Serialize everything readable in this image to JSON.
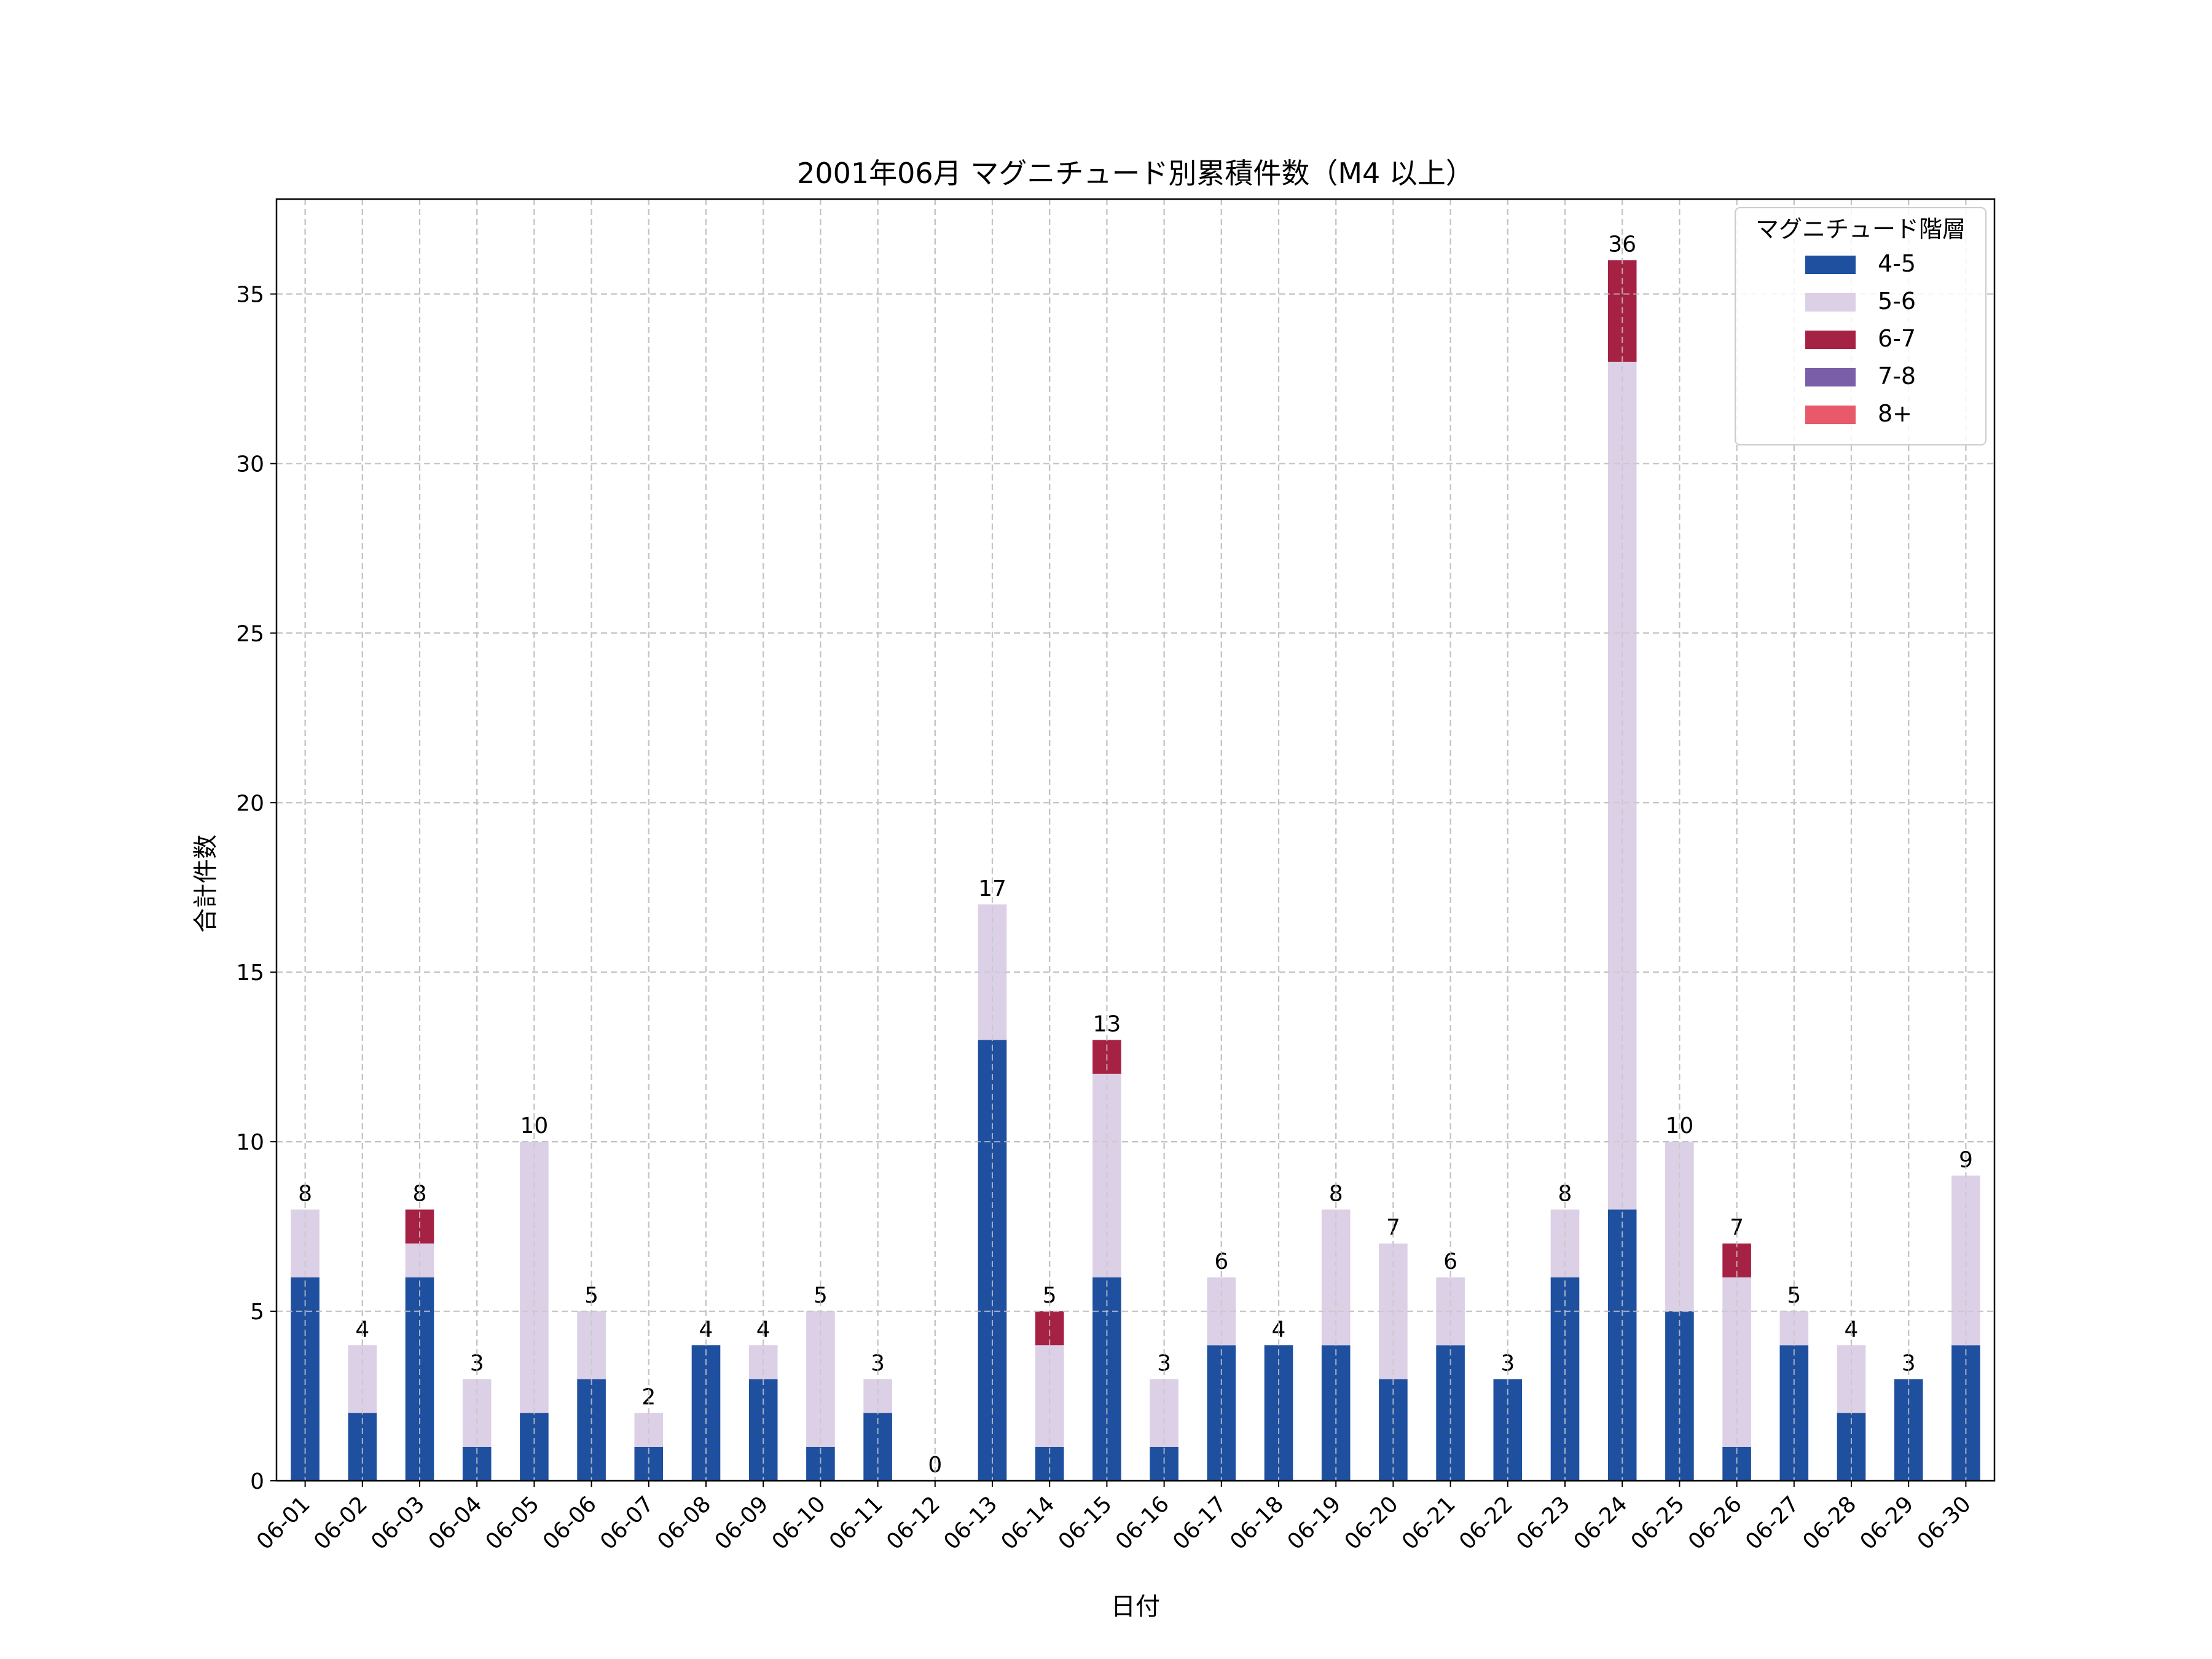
{
  "chart_data": {
    "type": "bar",
    "stacked": true,
    "title": "2001年06月 マグニチュード別累積件数（M4 以上）",
    "xlabel": "日付",
    "ylabel": "合計件数",
    "ylim": [
      0,
      37.8
    ],
    "yticks": [
      0,
      5,
      10,
      15,
      20,
      25,
      30,
      35
    ],
    "grid": true,
    "legend_position": "top-right",
    "legend_title": "マグニチュード階層",
    "categories": [
      "06-01",
      "06-02",
      "06-03",
      "06-04",
      "06-05",
      "06-06",
      "06-07",
      "06-08",
      "06-09",
      "06-10",
      "06-11",
      "06-12",
      "06-13",
      "06-14",
      "06-15",
      "06-16",
      "06-17",
      "06-18",
      "06-19",
      "06-20",
      "06-21",
      "06-22",
      "06-23",
      "06-24",
      "06-25",
      "06-26",
      "06-27",
      "06-28",
      "06-29",
      "06-30"
    ],
    "series": [
      {
        "name": "4-5",
        "color": "#1f50a0",
        "values": [
          6,
          2,
          6,
          1,
          2,
          3,
          1,
          4,
          3,
          1,
          2,
          0,
          13,
          1,
          6,
          1,
          4,
          4,
          4,
          3,
          4,
          3,
          6,
          8,
          5,
          1,
          4,
          2,
          3,
          4
        ]
      },
      {
        "name": "5-6",
        "color": "#dbd0e6",
        "values": [
          2,
          2,
          1,
          2,
          8,
          2,
          1,
          0,
          1,
          4,
          1,
          0,
          4,
          3,
          6,
          2,
          2,
          0,
          4,
          4,
          2,
          0,
          2,
          25,
          5,
          5,
          1,
          2,
          0,
          5
        ]
      },
      {
        "name": "6-7",
        "color": "#a62245",
        "values": [
          0,
          0,
          1,
          0,
          0,
          0,
          0,
          0,
          0,
          0,
          0,
          0,
          0,
          1,
          1,
          0,
          0,
          0,
          0,
          0,
          0,
          0,
          0,
          3,
          0,
          1,
          0,
          0,
          0,
          0
        ]
      },
      {
        "name": "7-8",
        "color": "#7b5ea8",
        "values": [
          0,
          0,
          0,
          0,
          0,
          0,
          0,
          0,
          0,
          0,
          0,
          0,
          0,
          0,
          0,
          0,
          0,
          0,
          0,
          0,
          0,
          0,
          0,
          0,
          0,
          0,
          0,
          0,
          0,
          0
        ]
      },
      {
        "name": "8+",
        "color": "#e85a6a",
        "values": [
          0,
          0,
          0,
          0,
          0,
          0,
          0,
          0,
          0,
          0,
          0,
          0,
          0,
          0,
          0,
          0,
          0,
          0,
          0,
          0,
          0,
          0,
          0,
          0,
          0,
          0,
          0,
          0,
          0,
          0
        ]
      }
    ],
    "totals": [
      8,
      4,
      8,
      3,
      10,
      5,
      2,
      4,
      4,
      5,
      3,
      0,
      17,
      5,
      13,
      3,
      6,
      4,
      8,
      7,
      6,
      3,
      8,
      36,
      10,
      7,
      5,
      4,
      3,
      9
    ]
  }
}
